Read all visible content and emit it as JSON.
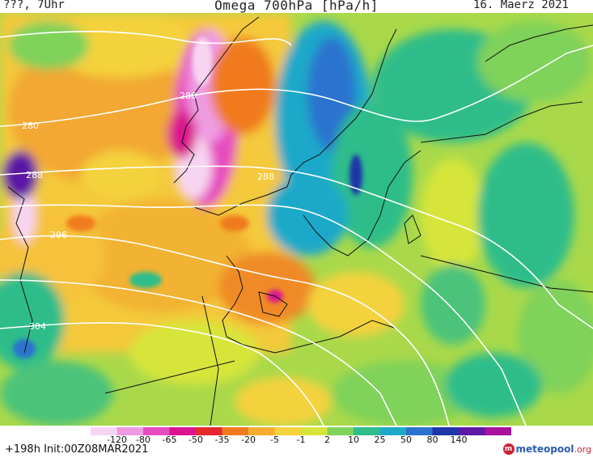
{
  "header": {
    "left_text": "???, 7Uhr",
    "title": "Omega 700hPa [hPa/h]",
    "date": "16. Maerz 2021"
  },
  "footer": {
    "init_text": "+198h Init:00Z08MAR2021",
    "logo_name": "meteopool",
    "logo_tld": ".org"
  },
  "colorbar": {
    "labels": [
      "-120",
      "-80",
      "-65",
      "-50",
      "-35",
      "-20",
      "-5",
      "-1",
      "2",
      "10",
      "25",
      "50",
      "80",
      "140"
    ],
    "colors": [
      "#f7d5f2",
      "#ef9be1",
      "#e64cc0",
      "#d9148f",
      "#e5292d",
      "#f07a1e",
      "#f6ad2f",
      "#f4d23c",
      "#d7e53a",
      "#7fd25a",
      "#2fbd8a",
      "#1fa9c9",
      "#2b73cf",
      "#1f36a8",
      "#5b19a6",
      "#a7139a"
    ]
  },
  "isobars": [
    {
      "label": "280"
    },
    {
      "label": "280"
    },
    {
      "label": "288"
    },
    {
      "label": "288"
    },
    {
      "label": "296"
    },
    {
      "label": "304"
    }
  ]
}
